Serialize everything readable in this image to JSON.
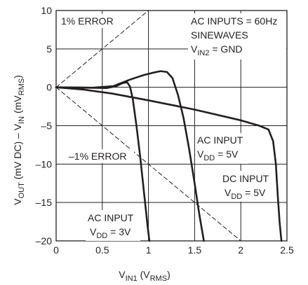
{
  "chart_data": {
    "type": "line",
    "xlabel": {
      "main": "V",
      "sub": "IN1",
      "tail": " (V",
      "sub2": "RMS",
      "close": ")"
    },
    "ylabel": {
      "p1": "V",
      "s1": "OUT",
      "p2": " (mV DC) – V",
      "s2": "IN",
      "p3": " (mV",
      "s3": "RMS",
      "p4": ")"
    },
    "xlim": [
      0,
      2.5
    ],
    "ylim": [
      -20,
      10
    ],
    "xticks": [
      0,
      0.5,
      1,
      1.5,
      2,
      2.5
    ],
    "xtick_labels": [
      "0",
      "0.5",
      "1",
      "1.5",
      "2",
      "2.5"
    ],
    "yticks": [
      -20,
      -15,
      -10,
      -5,
      0,
      5,
      10
    ],
    "ytick_labels": [
      "–20",
      "–15",
      "–10",
      "–5",
      "0",
      "5",
      "10"
    ],
    "grid": true,
    "series": [
      {
        "label": "AC INPUT VDD = 3V",
        "style": "solid",
        "points": [
          [
            0,
            0
          ],
          [
            0.3,
            -0.05
          ],
          [
            0.55,
            -0.1
          ],
          [
            0.65,
            0.15
          ],
          [
            0.72,
            0.55
          ],
          [
            0.77,
            0.65
          ],
          [
            0.8,
            0.1
          ],
          [
            0.83,
            -1.5
          ],
          [
            0.87,
            -5
          ],
          [
            0.91,
            -9
          ],
          [
            0.95,
            -13.5
          ],
          [
            0.99,
            -18
          ],
          [
            1.01,
            -20
          ]
        ]
      },
      {
        "label": "AC INPUT VDD = 5V",
        "style": "solid",
        "points": [
          [
            0,
            0
          ],
          [
            0.4,
            -0.05
          ],
          [
            0.62,
            0.15
          ],
          [
            0.8,
            1
          ],
          [
            0.95,
            1.6
          ],
          [
            1.05,
            1.9
          ],
          [
            1.13,
            2.1
          ],
          [
            1.2,
            2
          ],
          [
            1.26,
            1.2
          ],
          [
            1.32,
            -1
          ],
          [
            1.38,
            -4
          ],
          [
            1.44,
            -8
          ],
          [
            1.5,
            -12.5
          ],
          [
            1.55,
            -16.5
          ],
          [
            1.6,
            -20
          ]
        ]
      },
      {
        "label": "DC INPUT VDD = 5V",
        "style": "solid",
        "points": [
          [
            0,
            0
          ],
          [
            0.3,
            -0.3
          ],
          [
            0.6,
            -0.8
          ],
          [
            1,
            -1.7
          ],
          [
            1.5,
            -2.9
          ],
          [
            2,
            -4.3
          ],
          [
            2.2,
            -5
          ],
          [
            2.3,
            -5.5
          ],
          [
            2.35,
            -7
          ],
          [
            2.38,
            -10
          ],
          [
            2.4,
            -14
          ],
          [
            2.42,
            -17.5
          ],
          [
            2.44,
            -20
          ]
        ]
      },
      {
        "label": "1% ERROR",
        "style": "dashed",
        "points": [
          [
            0,
            0
          ],
          [
            1.0,
            10
          ]
        ]
      },
      {
        "label": "–1% ERROR",
        "style": "dashed",
        "points": [
          [
            0,
            0
          ],
          [
            2.0,
            -20
          ]
        ]
      }
    ],
    "annotations": {
      "err_pos": "1% ERROR",
      "err_neg": "–1% ERROR",
      "cond1": "AC INPUTS = 60Hz",
      "cond2": "SINEWAVES",
      "cond3_main": "V",
      "cond3_sub": "IN2",
      "cond3_tail": " = GND",
      "ac5_line1": "AC INPUT",
      "ac5_main": "V",
      "ac5_sub": "DD",
      "ac5_tail": " = 5V",
      "dc5_line1": "DC INPUT",
      "dc5_main": "V",
      "dc5_sub": "DD",
      "dc5_tail": " = 5V",
      "ac3_line1": "AC INPUT",
      "ac3_main": "V",
      "ac3_sub": "DD",
      "ac3_tail": " = 3V"
    }
  }
}
